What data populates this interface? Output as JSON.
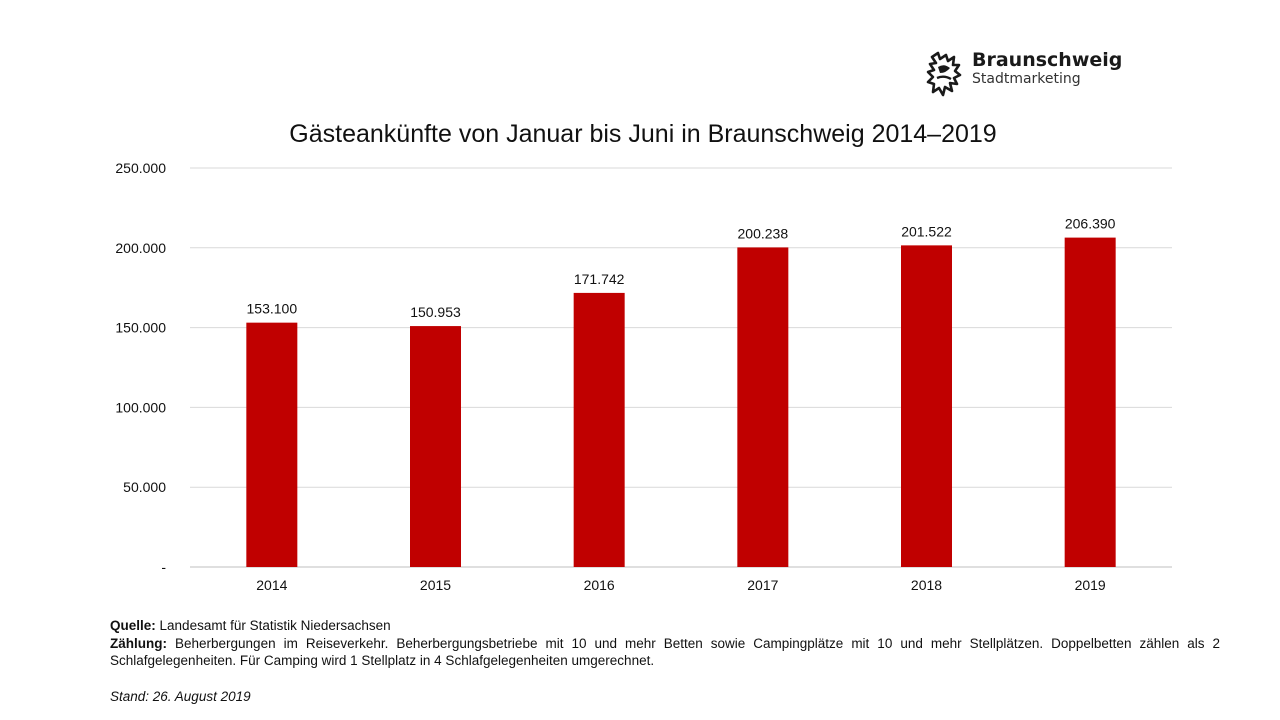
{
  "logo": {
    "name": "Braunschweig",
    "subtitle": "Stadtmarketing",
    "icon": "lion-icon"
  },
  "chart_data": {
    "type": "bar",
    "title": "Gästeankünfte von Januar bis Juni in Braunschweig 2014–2019",
    "categories": [
      "2014",
      "2015",
      "2016",
      "2017",
      "2018",
      "2019"
    ],
    "values": [
      153100,
      150953,
      171742,
      200238,
      201522,
      206390
    ],
    "data_labels": [
      "153.100",
      "150.953",
      "171.742",
      "200.238",
      "201.522",
      "206.390"
    ],
    "ylim": [
      0,
      250000
    ],
    "yticks": [
      0,
      50000,
      100000,
      150000,
      200000,
      250000
    ],
    "ytick_labels": [
      "-",
      "50.000",
      "100.000",
      "150.000",
      "200.000",
      "250.000"
    ],
    "xlabel": "",
    "ylabel": "",
    "grid": true,
    "legend": "none",
    "bar_color": "#c00000",
    "grid_color": "#d9d9d9"
  },
  "notes": {
    "source_label": "Quelle:",
    "source_text": "Landesamt für Statistik Niedersachsen",
    "count_label": "Zählung:",
    "count_text": "Beherbergungen im Reiseverkehr. Beherbergungsbetriebe mit 10 und mehr Betten sowie Campingplätze mit 10 und mehr Stellplätzen. Doppelbetten zählen als 2 Schlafgelegenheiten. Für Camping wird 1 Stellplatz in 4 Schlafgelegenheiten umgerechnet.",
    "stand": "Stand: 26. August 2019"
  }
}
